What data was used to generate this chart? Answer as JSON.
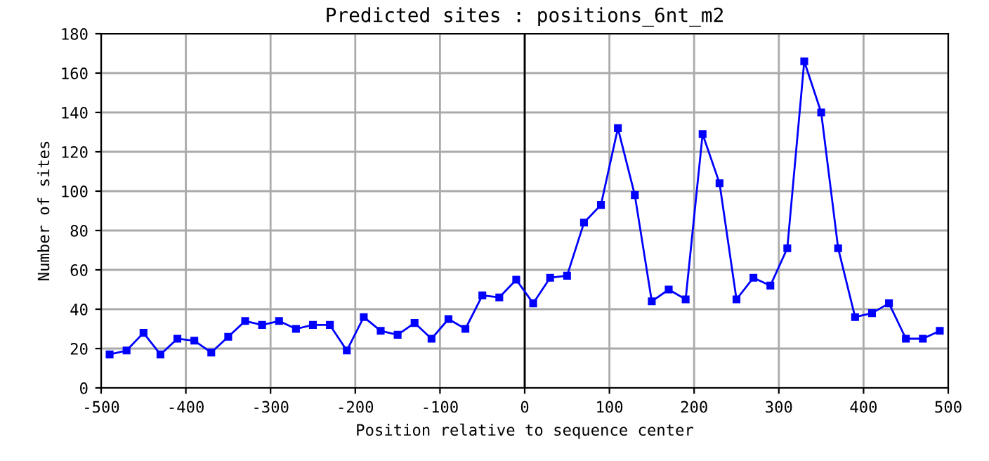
{
  "chart_data": {
    "type": "line",
    "title": "Predicted sites : positions_6nt_m2",
    "xlabel": "Position relative to sequence center",
    "ylabel": "Number of sites",
    "x": [
      -490,
      -470,
      -450,
      -430,
      -410,
      -390,
      -370,
      -350,
      -330,
      -310,
      -290,
      -270,
      -250,
      -230,
      -210,
      -190,
      -170,
      -150,
      -130,
      -110,
      -90,
      -70,
      -50,
      -30,
      -10,
      10,
      30,
      50,
      70,
      90,
      110,
      130,
      150,
      170,
      190,
      210,
      230,
      250,
      270,
      290,
      310,
      330,
      350,
      370,
      390,
      410,
      430,
      450,
      470,
      490
    ],
    "series": [
      {
        "color": "#0000ff",
        "values": [
          17,
          19,
          28,
          17,
          25,
          24,
          18,
          26,
          34,
          32,
          34,
          30,
          32,
          32,
          19,
          36,
          29,
          27,
          33,
          25,
          35,
          30,
          47,
          46,
          55,
          43,
          56,
          57,
          84,
          93,
          132,
          98,
          44,
          50,
          45,
          129,
          104,
          45,
          56,
          52,
          71,
          166,
          140,
          71,
          36,
          38,
          43,
          25,
          25,
          29
        ]
      }
    ],
    "xlim": [
      -500,
      500
    ],
    "xticks": [
      -500,
      -400,
      -300,
      -200,
      -100,
      0,
      100,
      200,
      300,
      400,
      500
    ],
    "ylim": [
      0,
      180
    ],
    "yticks": [
      0,
      20,
      40,
      60,
      80,
      100,
      120,
      140,
      160,
      180
    ],
    "grid": true,
    "marker": "square",
    "line_style": "solid",
    "ref_lines": [
      {
        "axis": "x",
        "value": 0,
        "color": "#000000"
      }
    ]
  }
}
